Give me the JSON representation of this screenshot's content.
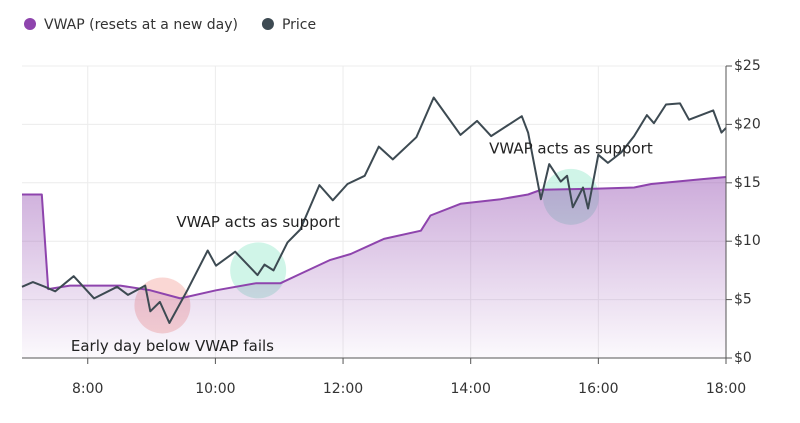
{
  "chart_data": {
    "type": "line",
    "xlim": [
      6.97,
      18
    ],
    "xticks": [
      {
        "value": 8,
        "label": "8:00"
      },
      {
        "value": 10,
        "label": "10:00"
      },
      {
        "value": 12,
        "label": "12:00"
      },
      {
        "value": 14,
        "label": "14:00"
      },
      {
        "value": 16,
        "label": "16:00"
      },
      {
        "value": 18,
        "label": "18:00"
      }
    ],
    "ylim": [
      0,
      25
    ],
    "yticks": [
      {
        "value": 0,
        "label": "$0"
      },
      {
        "value": 5,
        "label": "$5"
      },
      {
        "value": 10,
        "label": "$10"
      },
      {
        "value": 15,
        "label": "$15"
      },
      {
        "value": 20,
        "label": "$20"
      },
      {
        "value": 25,
        "label": "$25"
      }
    ],
    "grid": true,
    "legend": "top-left",
    "series": [
      {
        "name": "VWAP (resets at a new day)",
        "color": "#8e44ad",
        "fill": true,
        "x": [
          6.97,
          7.28,
          7.38,
          7.72,
          8.51,
          8.98,
          9.45,
          10.01,
          10.64,
          11.02,
          11.33,
          11.8,
          12.12,
          12.64,
          13.22,
          13.37,
          13.84,
          14.47,
          14.9,
          15.1,
          16.0,
          16.56,
          16.83,
          17.61,
          18.0
        ],
        "values": [
          14.0,
          14.0,
          5.9,
          6.2,
          6.2,
          5.8,
          5.1,
          5.8,
          6.4,
          6.4,
          7.2,
          8.4,
          8.9,
          10.2,
          10.9,
          12.2,
          13.2,
          13.6,
          14.0,
          14.4,
          14.5,
          14.6,
          14.9,
          15.3,
          15.5
        ]
      },
      {
        "name": "Price",
        "color": "#3d4a52",
        "x": [
          6.97,
          7.14,
          7.33,
          7.49,
          7.78,
          8.1,
          8.46,
          8.63,
          8.9,
          8.98,
          9.13,
          9.28,
          9.56,
          9.88,
          10.01,
          10.31,
          10.66,
          10.77,
          10.91,
          11.13,
          11.33,
          11.63,
          11.84,
          12.07,
          12.34,
          12.56,
          12.78,
          13.15,
          13.42,
          13.84,
          14.1,
          14.32,
          14.8,
          14.9,
          15.1,
          15.23,
          15.41,
          15.51,
          15.6,
          15.76,
          15.84,
          16.0,
          16.15,
          16.36,
          16.56,
          16.76,
          16.87,
          17.06,
          17.28,
          17.42,
          17.8,
          17.93,
          18.0
        ],
        "values": [
          6.1,
          6.5,
          6.1,
          5.7,
          7.0,
          5.1,
          6.1,
          5.4,
          6.2,
          4.0,
          4.8,
          3.0,
          5.8,
          9.2,
          7.9,
          9.1,
          7.1,
          8.0,
          7.5,
          9.9,
          11.0,
          14.8,
          13.5,
          14.9,
          15.6,
          18.1,
          17.0,
          18.9,
          22.3,
          19.1,
          20.3,
          19.0,
          20.7,
          19.3,
          13.6,
          16.6,
          15.1,
          15.6,
          12.9,
          14.6,
          12.8,
          17.4,
          16.7,
          17.6,
          19.0,
          20.8,
          20.1,
          21.7,
          21.8,
          20.4,
          21.2,
          19.3,
          19.7
        ]
      }
    ],
    "annotations": [
      {
        "text": "Early day below VWAP fails",
        "x": 9.17,
        "y": 4.5,
        "color": "#f5b7b1"
      },
      {
        "text": "VWAP acts as support",
        "x": 10.67,
        "y": 7.5,
        "color": "#a9ecd6"
      },
      {
        "text": "VWAP acts as support",
        "x": 15.57,
        "y": 13.8,
        "color": "#a9ecd6"
      }
    ]
  }
}
